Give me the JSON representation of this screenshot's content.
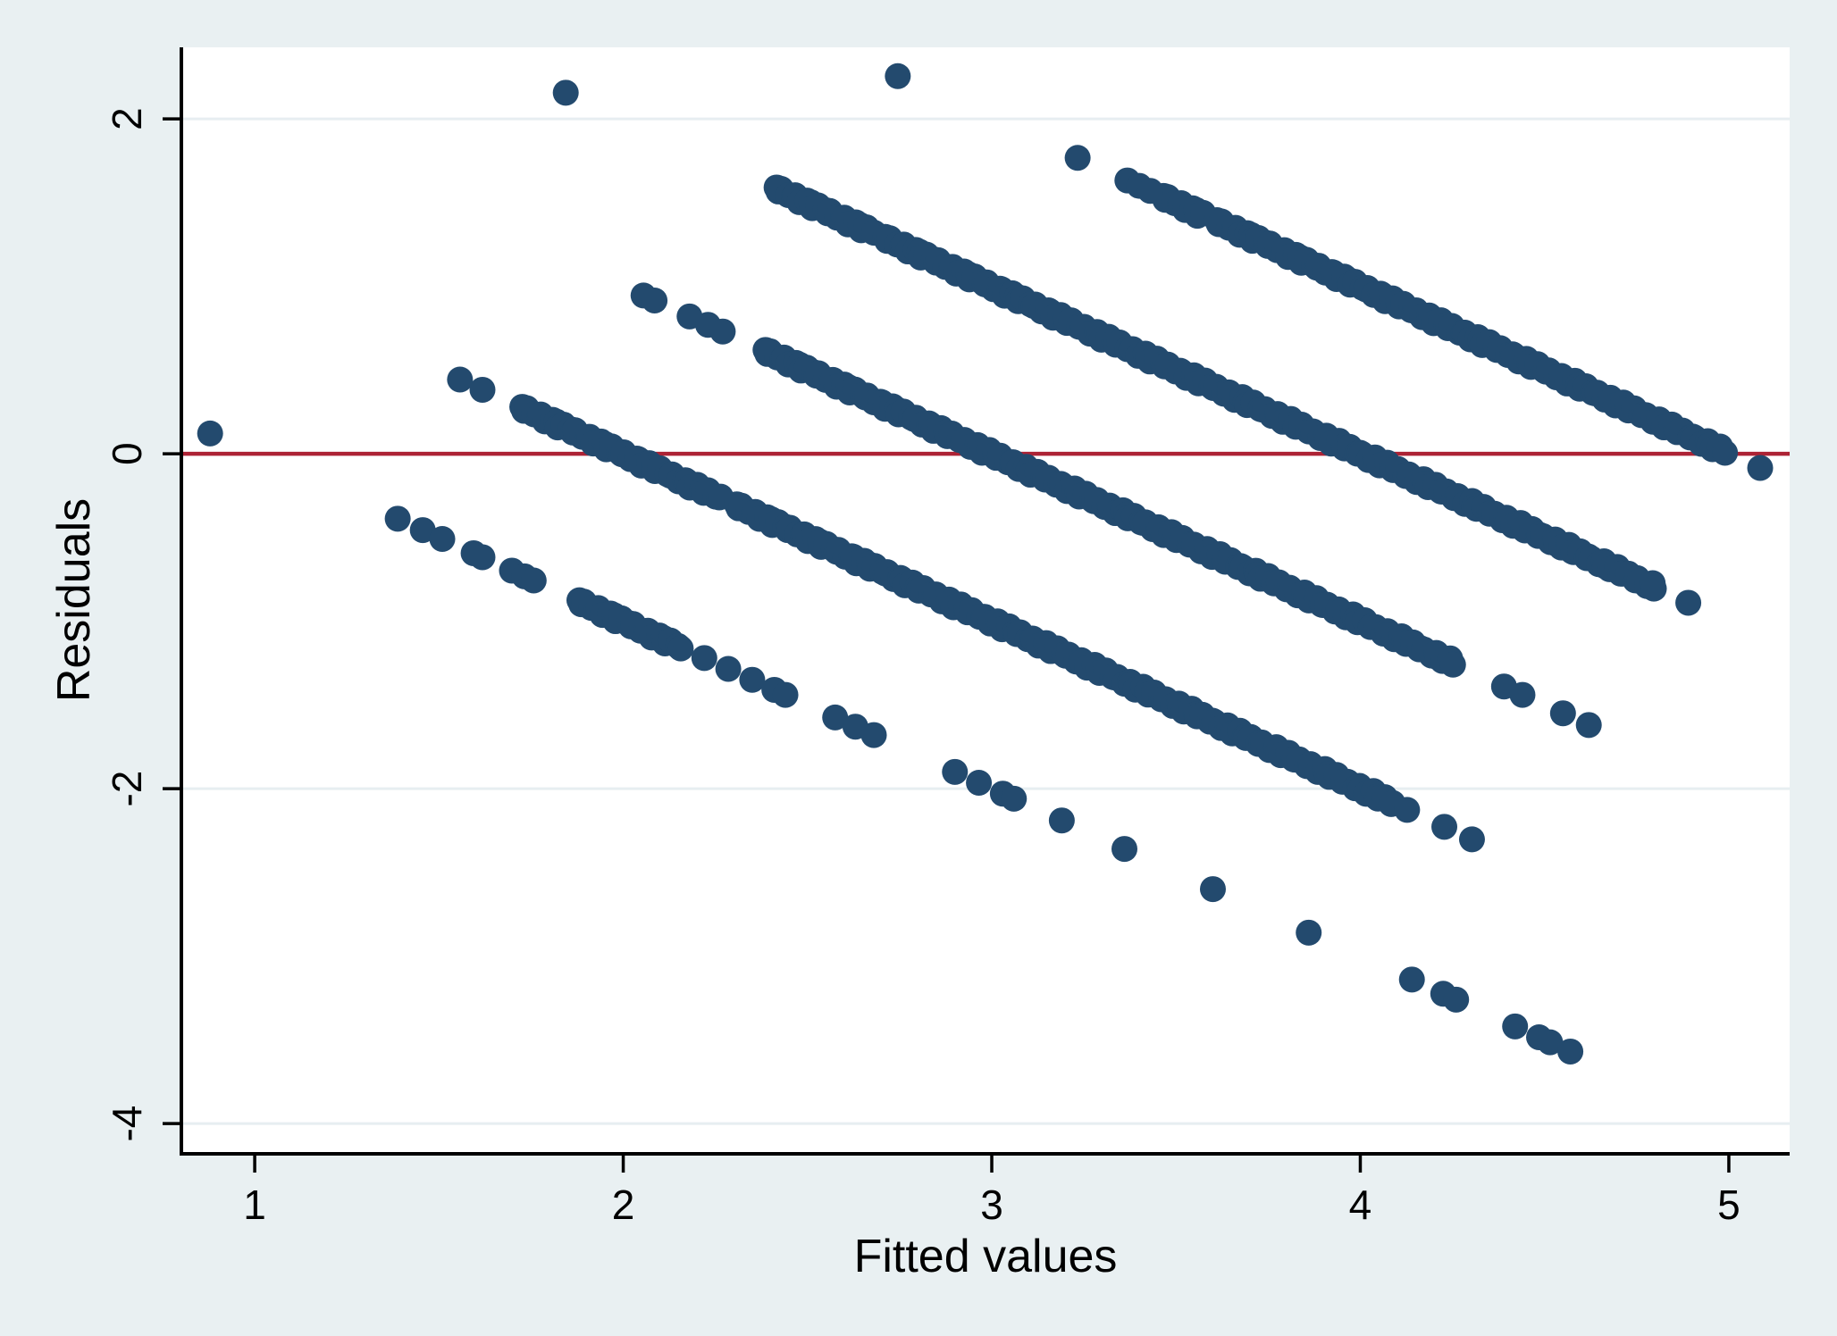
{
  "chart_data": {
    "type": "scatter",
    "title": "",
    "xlabel": "Fitted values",
    "ylabel": "Residuals",
    "x_ticks": [
      1,
      2,
      3,
      4,
      5
    ],
    "y_ticks": [
      2,
      0,
      -2,
      -4
    ],
    "xlim": [
      0.801,
      5.165
    ],
    "ylim": [
      -4.181,
      2.427
    ],
    "grid": "horizontal-only",
    "legend": "none",
    "refline": {
      "y": 0,
      "color": "#ad2335"
    },
    "marker": {
      "color": "#234a6e",
      "radius_px": 14.5
    },
    "style": {
      "page_background": "#e9f0f2",
      "plot_background": "#ffffff",
      "gridline_color": "#e7eef1",
      "axis_color": "#000000"
    },
    "run_step": 0.012,
    "bands_note": "Each band follows residual = y_value - fitted (slope -1). 'runs' are dense fitted-value intervals; 'points' are isolated dots.",
    "bands": [
      {
        "y_value": 1,
        "points": [
          0.879,
          1.388,
          1.456,
          1.509,
          1.594,
          1.618,
          1.698,
          1.732,
          1.757,
          2.22,
          2.285,
          2.35,
          2.41,
          2.44,
          2.575,
          2.63,
          2.68,
          2.9,
          2.965,
          3.03,
          3.06,
          3.19,
          3.36,
          3.6,
          3.86,
          4.14,
          4.225,
          4.26,
          4.42,
          4.485,
          4.515,
          4.57
        ],
        "runs": [
          [
            1.875,
            2.155
          ]
        ]
      },
      {
        "y_value": 2,
        "points": [
          1.557,
          1.618,
          4.127,
          4.228,
          4.303
        ],
        "runs": [
          [
            1.72,
            2.27
          ],
          [
            2.302,
            4.09
          ]
        ]
      },
      {
        "y_value": 3,
        "points": [
          2.055,
          2.085,
          2.18,
          2.23,
          2.27,
          4.39,
          4.44,
          4.55,
          4.62
        ],
        "runs": [
          [
            2.38,
            4.25
          ]
        ]
      },
      {
        "y_value": 4,
        "points": [
          1.844,
          4.89
        ],
        "runs": [
          [
            2.41,
            2.675
          ],
          [
            2.705,
            4.8
          ]
        ]
      },
      {
        "y_value": 5,
        "points": [
          2.745,
          3.233,
          3.368,
          3.4,
          3.43,
          5.085
        ],
        "runs": [
          [
            3.46,
            3.575
          ],
          [
            3.605,
            4.985
          ]
        ]
      }
    ]
  }
}
